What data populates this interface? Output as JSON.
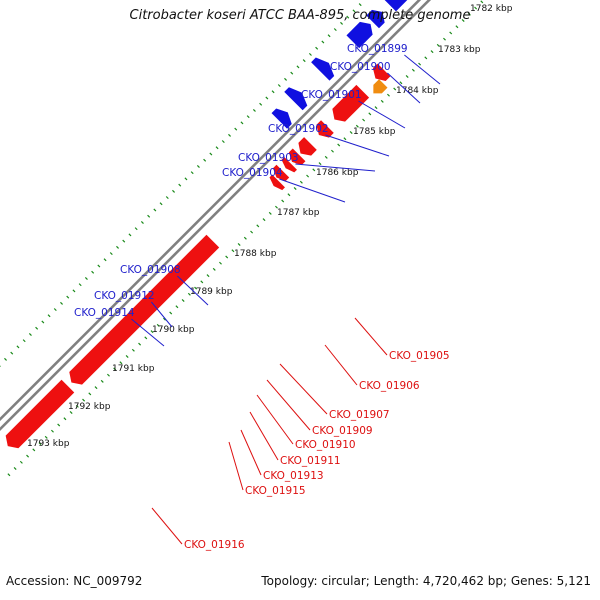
{
  "title": "Citrobacter koseri ATCC BAA-895, complete genome",
  "footer": {
    "accession": "Accession: NC_009792",
    "stats": "Topology: circular; Length: 4,720,462 bp; Genes: 5,121"
  },
  "colors": {
    "forward_gene": "#1010e0",
    "reverse_gene": "#ee1010",
    "highlight_gene": "#f08c10",
    "forward_label": "#2020cc",
    "reverse_label": "#dd1010",
    "backbone": "#808080",
    "tick_dots": "#1a8a1a"
  },
  "ticks": [
    {
      "label": "1782 kbp"
    },
    {
      "label": "1783 kbp"
    },
    {
      "label": "1784 kbp"
    },
    {
      "label": "1785 kbp"
    },
    {
      "label": "1786 kbp"
    },
    {
      "label": "1787 kbp"
    },
    {
      "label": "1788 kbp"
    },
    {
      "label": "1789 kbp"
    },
    {
      "label": "1790 kbp"
    },
    {
      "label": "1791 kbp"
    },
    {
      "label": "1792 kbp"
    },
    {
      "label": "1793 kbp"
    }
  ],
  "forward_labels": [
    "CKO_01899",
    "CKO_01900",
    "CKO_01901",
    "CKO_01902",
    "CKO_01903",
    "CKO_01904",
    "CKO_01908",
    "CKO_01912",
    "CKO_01914"
  ],
  "reverse_labels": [
    "CKO_01905",
    "CKO_01906",
    "CKO_01907",
    "CKO_01909",
    "CKO_01910",
    "CKO_01911",
    "CKO_01913",
    "CKO_01915",
    "CKO_01916"
  ]
}
